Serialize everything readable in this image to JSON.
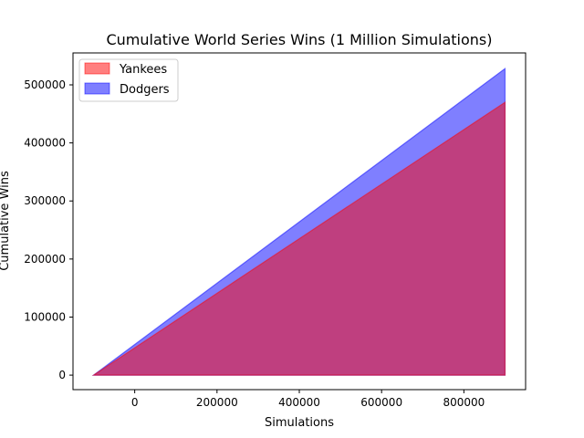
{
  "chart_data": {
    "type": "area",
    "title": "Cumulative World Series Wins (1 Million Simulations)",
    "xlabel": "Simulations",
    "ylabel": "Cumulative Wins",
    "xlim": [
      -150000,
      950000
    ],
    "ylim": [
      -25000,
      555000
    ],
    "xticks": [
      0,
      200000,
      400000,
      600000,
      800000
    ],
    "yticks": [
      0,
      100000,
      200000,
      300000,
      400000,
      500000
    ],
    "legend_position": "top-left",
    "grid": false,
    "series": [
      {
        "name": "Dodgers",
        "color": "#0000ff",
        "opacity": 0.5,
        "x": [
          -100000,
          900000
        ],
        "values": [
          0,
          528000
        ]
      },
      {
        "name": "Yankees",
        "color": "#ff0000",
        "opacity": 0.5,
        "x": [
          -100000,
          900000
        ],
        "values": [
          0,
          470000
        ]
      }
    ],
    "legend_order": [
      "Yankees",
      "Dodgers"
    ]
  }
}
